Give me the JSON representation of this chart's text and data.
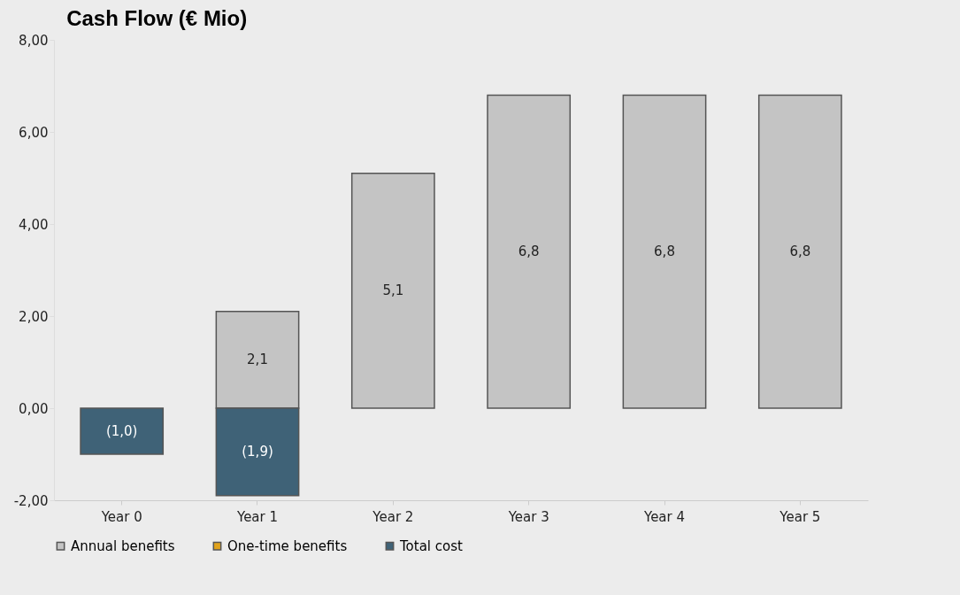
{
  "chart_data": {
    "type": "bar",
    "title": "Cash Flow (€ Mio)",
    "stacked": true,
    "categories": [
      "Year 0",
      "Year 1",
      "Year 2",
      "Year 3",
      "Year 4",
      "Year 5"
    ],
    "series": [
      {
        "name": "Annual benefits",
        "color": "#c4c4c4",
        "values": [
          null,
          2.1,
          5.1,
          6.8,
          6.8,
          6.8
        ],
        "value_labels": [
          null,
          "2,1",
          "5,1",
          "6,8",
          "6,8",
          "6,8"
        ]
      },
      {
        "name": "One-time benefits",
        "color": "#e0a21c",
        "values": [
          null,
          null,
          null,
          null,
          null,
          null
        ]
      },
      {
        "name": "Total cost",
        "color": "#3f6277",
        "values": [
          -1.0,
          -1.9,
          null,
          null,
          null,
          null
        ],
        "value_labels": [
          "(1,0)",
          "(1,9)",
          null,
          null,
          null,
          null
        ]
      }
    ],
    "ylim": [
      -2,
      8
    ],
    "yticks": [
      {
        "value": -2,
        "label": "-2,00"
      },
      {
        "value": 0,
        "label": "0,00"
      },
      {
        "value": 2,
        "label": "2,00"
      },
      {
        "value": 4,
        "label": "4,00"
      },
      {
        "value": 6,
        "label": "6,00"
      },
      {
        "value": 8,
        "label": "8,00"
      }
    ],
    "grid": false,
    "legend": "bottom"
  }
}
